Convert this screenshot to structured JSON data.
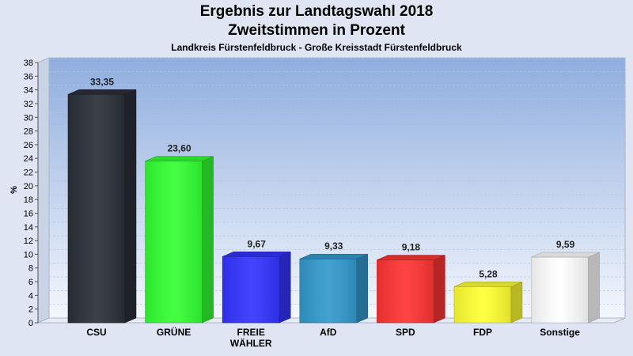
{
  "chart_data": {
    "type": "bar",
    "title": "Ergebnis zur Landtagswahl 2018",
    "subtitle": "Zweitstimmen in Prozent",
    "subsubtitle": "Landkreis Fürstenfeldbruck - Große Kreisstadt Fürstenfeldbruck",
    "ylabel": "%",
    "xlabel": "",
    "ylim": [
      0,
      38
    ],
    "yticks": [
      0,
      2,
      4,
      6,
      8,
      10,
      12,
      14,
      16,
      18,
      20,
      22,
      24,
      26,
      28,
      30,
      32,
      34,
      36,
      38
    ],
    "grid": true,
    "categories": [
      "CSU",
      "GRÜNE",
      "FREIE\nWÄHLER",
      "AfD",
      "SPD",
      "FDP",
      "Sonstige"
    ],
    "values": [
      33.35,
      23.6,
      9.67,
      9.33,
      9.18,
      5.28,
      9.59
    ],
    "value_labels": [
      "33,35",
      "23,60",
      "9,67",
      "9,33",
      "9,18",
      "5,28",
      "9,59"
    ],
    "colors": [
      "#2b2f38",
      "#33ff33",
      "#3333ff",
      "#3399cc",
      "#ff3333",
      "#ffff33",
      "#ffffff"
    ]
  }
}
